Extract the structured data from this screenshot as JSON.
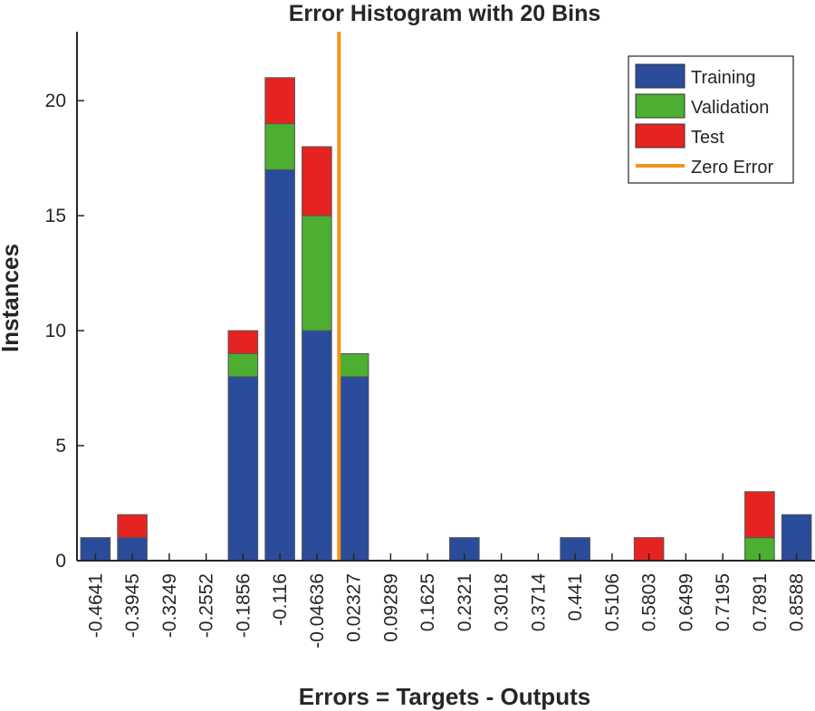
{
  "chart_data": {
    "type": "bar",
    "stacked": true,
    "title": "Error Histogram with 20 Bins",
    "xlabel": "Errors = Targets - Outputs",
    "ylabel": "Instances",
    "ylim": [
      0,
      23
    ],
    "yticks": [
      0,
      5,
      10,
      15,
      20
    ],
    "categories": [
      "-0.4641",
      "-0.3945",
      "-0.3249",
      "-0.2552",
      "-0.1856",
      "-0.116",
      "-0.04636",
      "0.02327",
      "0.09289",
      "0.1625",
      "0.2321",
      "0.3018",
      "0.3714",
      "0.441",
      "0.5106",
      "0.5803",
      "0.6499",
      "0.7195",
      "0.7891",
      "0.8588"
    ],
    "series": [
      {
        "name": "Training",
        "color": "#2b4b9b",
        "values": [
          1,
          1,
          0,
          0,
          8,
          17,
          10,
          8,
          0,
          0,
          1,
          0,
          0,
          1,
          0,
          0,
          0,
          0,
          0,
          2
        ]
      },
      {
        "name": "Validation",
        "color": "#4caf32",
        "values": [
          0,
          0,
          0,
          0,
          1,
          2,
          5,
          1,
          0,
          0,
          0,
          0,
          0,
          0,
          0,
          0,
          0,
          0,
          1,
          0
        ]
      },
      {
        "name": "Test",
        "color": "#e52421",
        "values": [
          0,
          1,
          0,
          0,
          1,
          2,
          3,
          0,
          0,
          0,
          0,
          0,
          0,
          0,
          0,
          1,
          0,
          0,
          2,
          0
        ]
      }
    ],
    "zero_error": {
      "name": "Zero Error",
      "color": "#f29418",
      "x_bin_position": 7.1
    },
    "legend_location": "top-right"
  }
}
